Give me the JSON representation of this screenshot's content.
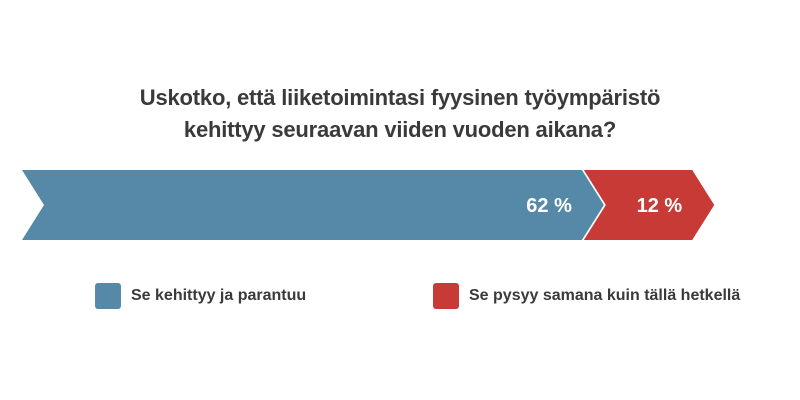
{
  "chart_data": {
    "type": "bar",
    "orientation": "horizontal-stacked",
    "title_lines": [
      "Uskotko, että liiketoimintasi fyysinen työympäristö",
      "kehittyy seuraavan viiden vuoden aikana?"
    ],
    "series": [
      {
        "name": "Se kehittyy ja parantuu",
        "value": 62,
        "label": "62 %",
        "color": "#5689a8"
      },
      {
        "name": "Se pysyy samana kuin tällä hetkellä",
        "value": 12,
        "label": "12 %",
        "color": "#c73a35"
      }
    ],
    "legend_placement": "bottom"
  }
}
